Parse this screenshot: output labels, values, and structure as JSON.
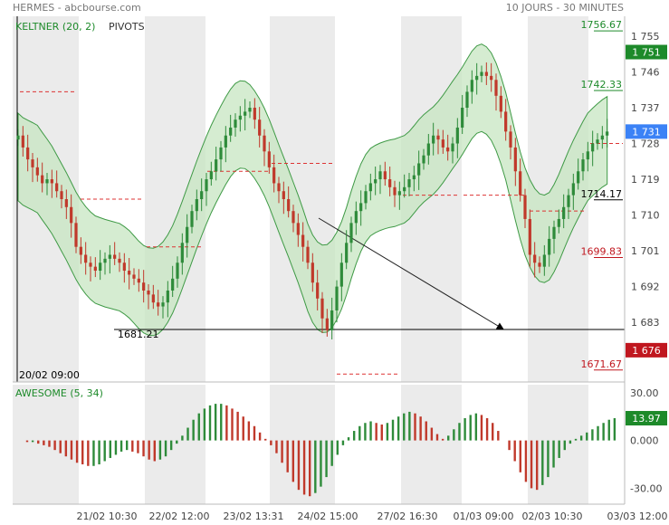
{
  "header": {
    "source": "HERMES - abcbourse.com",
    "period": "10 JOURS - 30 MINUTES"
  },
  "main_panel": {
    "indicator_label": "KELTNER (20, 2)",
    "pivots_label": "PIVOTS",
    "date_marker": "20/02 09:00",
    "line_label": "1681.21",
    "price_ticks": [
      "1 755",
      "1 746",
      "1 737",
      "1 728",
      "1 719",
      "1 710",
      "1 701",
      "1 692",
      "1 683"
    ],
    "tag_upper": "1756.67",
    "tag_last": "1 751",
    "tag_mid_upper": "1742.33",
    "tag_current": "1 731",
    "tag_pivot": "1714.17",
    "tag_support": "1699.83",
    "tag_low": "1 676",
    "tag_bottom": "1671.67"
  },
  "osc_panel": {
    "label": "AWESOME (5, 34)",
    "ticks": [
      "30.00",
      "0.000",
      "-30.00"
    ],
    "tag_value": "13.97"
  },
  "x_axis": {
    "ticks": [
      "21/02 10:30",
      "22/02 12:00",
      "23/02 13:31",
      "24/02 15:00",
      "27/02 16:30",
      "01/03 09:00",
      "02/03 10:30",
      "03/03 12:00"
    ]
  },
  "colors": {
    "up": "#2e8b3a",
    "down": "#c0392b",
    "band": "#c7e6c2",
    "band_line": "#3f9a46",
    "pivot": "#d33",
    "blue_tag": "#3b82f6",
    "green_tag": "#1d8a2a",
    "red_tag": "#c0171f"
  },
  "chart_data": {
    "type": "candlestick",
    "title": "HERMES - abcbourse.com",
    "ylim": [
      1668,
      1760
    ],
    "close": [
      1730,
      1727,
      1724,
      1722,
      1720,
      1718,
      1719,
      1718,
      1716,
      1714,
      1712,
      1708,
      1702,
      1700,
      1698,
      1697,
      1696,
      1698,
      1699,
      1700,
      1699,
      1698,
      1696,
      1695,
      1694,
      1693,
      1691,
      1690,
      1688,
      1687,
      1688,
      1691,
      1694,
      1698,
      1703,
      1707,
      1711,
      1714,
      1716,
      1719,
      1721,
      1724,
      1727,
      1730,
      1732,
      1734,
      1735,
      1736,
      1737,
      1734,
      1730,
      1726,
      1722,
      1718,
      1716,
      1714,
      1711,
      1708,
      1705,
      1702,
      1698,
      1693,
      1689,
      1684,
      1681,
      1686,
      1692,
      1698,
      1703,
      1708,
      1711,
      1713,
      1716,
      1718,
      1719,
      1721,
      1719,
      1717,
      1715,
      1716,
      1717,
      1719,
      1720,
      1723,
      1725,
      1728,
      1730,
      1729,
      1727,
      1726,
      1728,
      1732,
      1737,
      1741,
      1744,
      1745,
      1746,
      1745,
      1744,
      1740,
      1736,
      1731,
      1727,
      1721,
      1715,
      1709,
      1700,
      1698,
      1697,
      1700,
      1704,
      1707,
      1709,
      1712,
      1715,
      1718,
      1721,
      1724,
      1726,
      1728,
      1729,
      1730,
      1731
    ],
    "awesome_oscillator": [
      -1,
      -1,
      -2,
      -3,
      -4,
      -6,
      -8,
      -10,
      -12,
      -14,
      -15,
      -16,
      -16,
      -15,
      -13,
      -11,
      -9,
      -7,
      -6,
      -7,
      -8,
      -10,
      -12,
      -13,
      -12,
      -10,
      -6,
      -2,
      3,
      8,
      13,
      17,
      20,
      22,
      23,
      23,
      22,
      20,
      18,
      15,
      12,
      9,
      5,
      1,
      -3,
      -8,
      -14,
      -20,
      -26,
      -31,
      -34,
      -35,
      -33,
      -29,
      -23,
      -16,
      -9,
      -3,
      2,
      6,
      9,
      11,
      12,
      11,
      10,
      11,
      13,
      15,
      17,
      18,
      17,
      15,
      12,
      8,
      4,
      1,
      3,
      7,
      11,
      14,
      16,
      17,
      16,
      14,
      11,
      6,
      0,
      -6,
      -13,
      -20,
      -26,
      -30,
      -31,
      -28,
      -23,
      -17,
      -11,
      -6,
      -2,
      1,
      3,
      5,
      7,
      9,
      11,
      13,
      14
    ]
  }
}
